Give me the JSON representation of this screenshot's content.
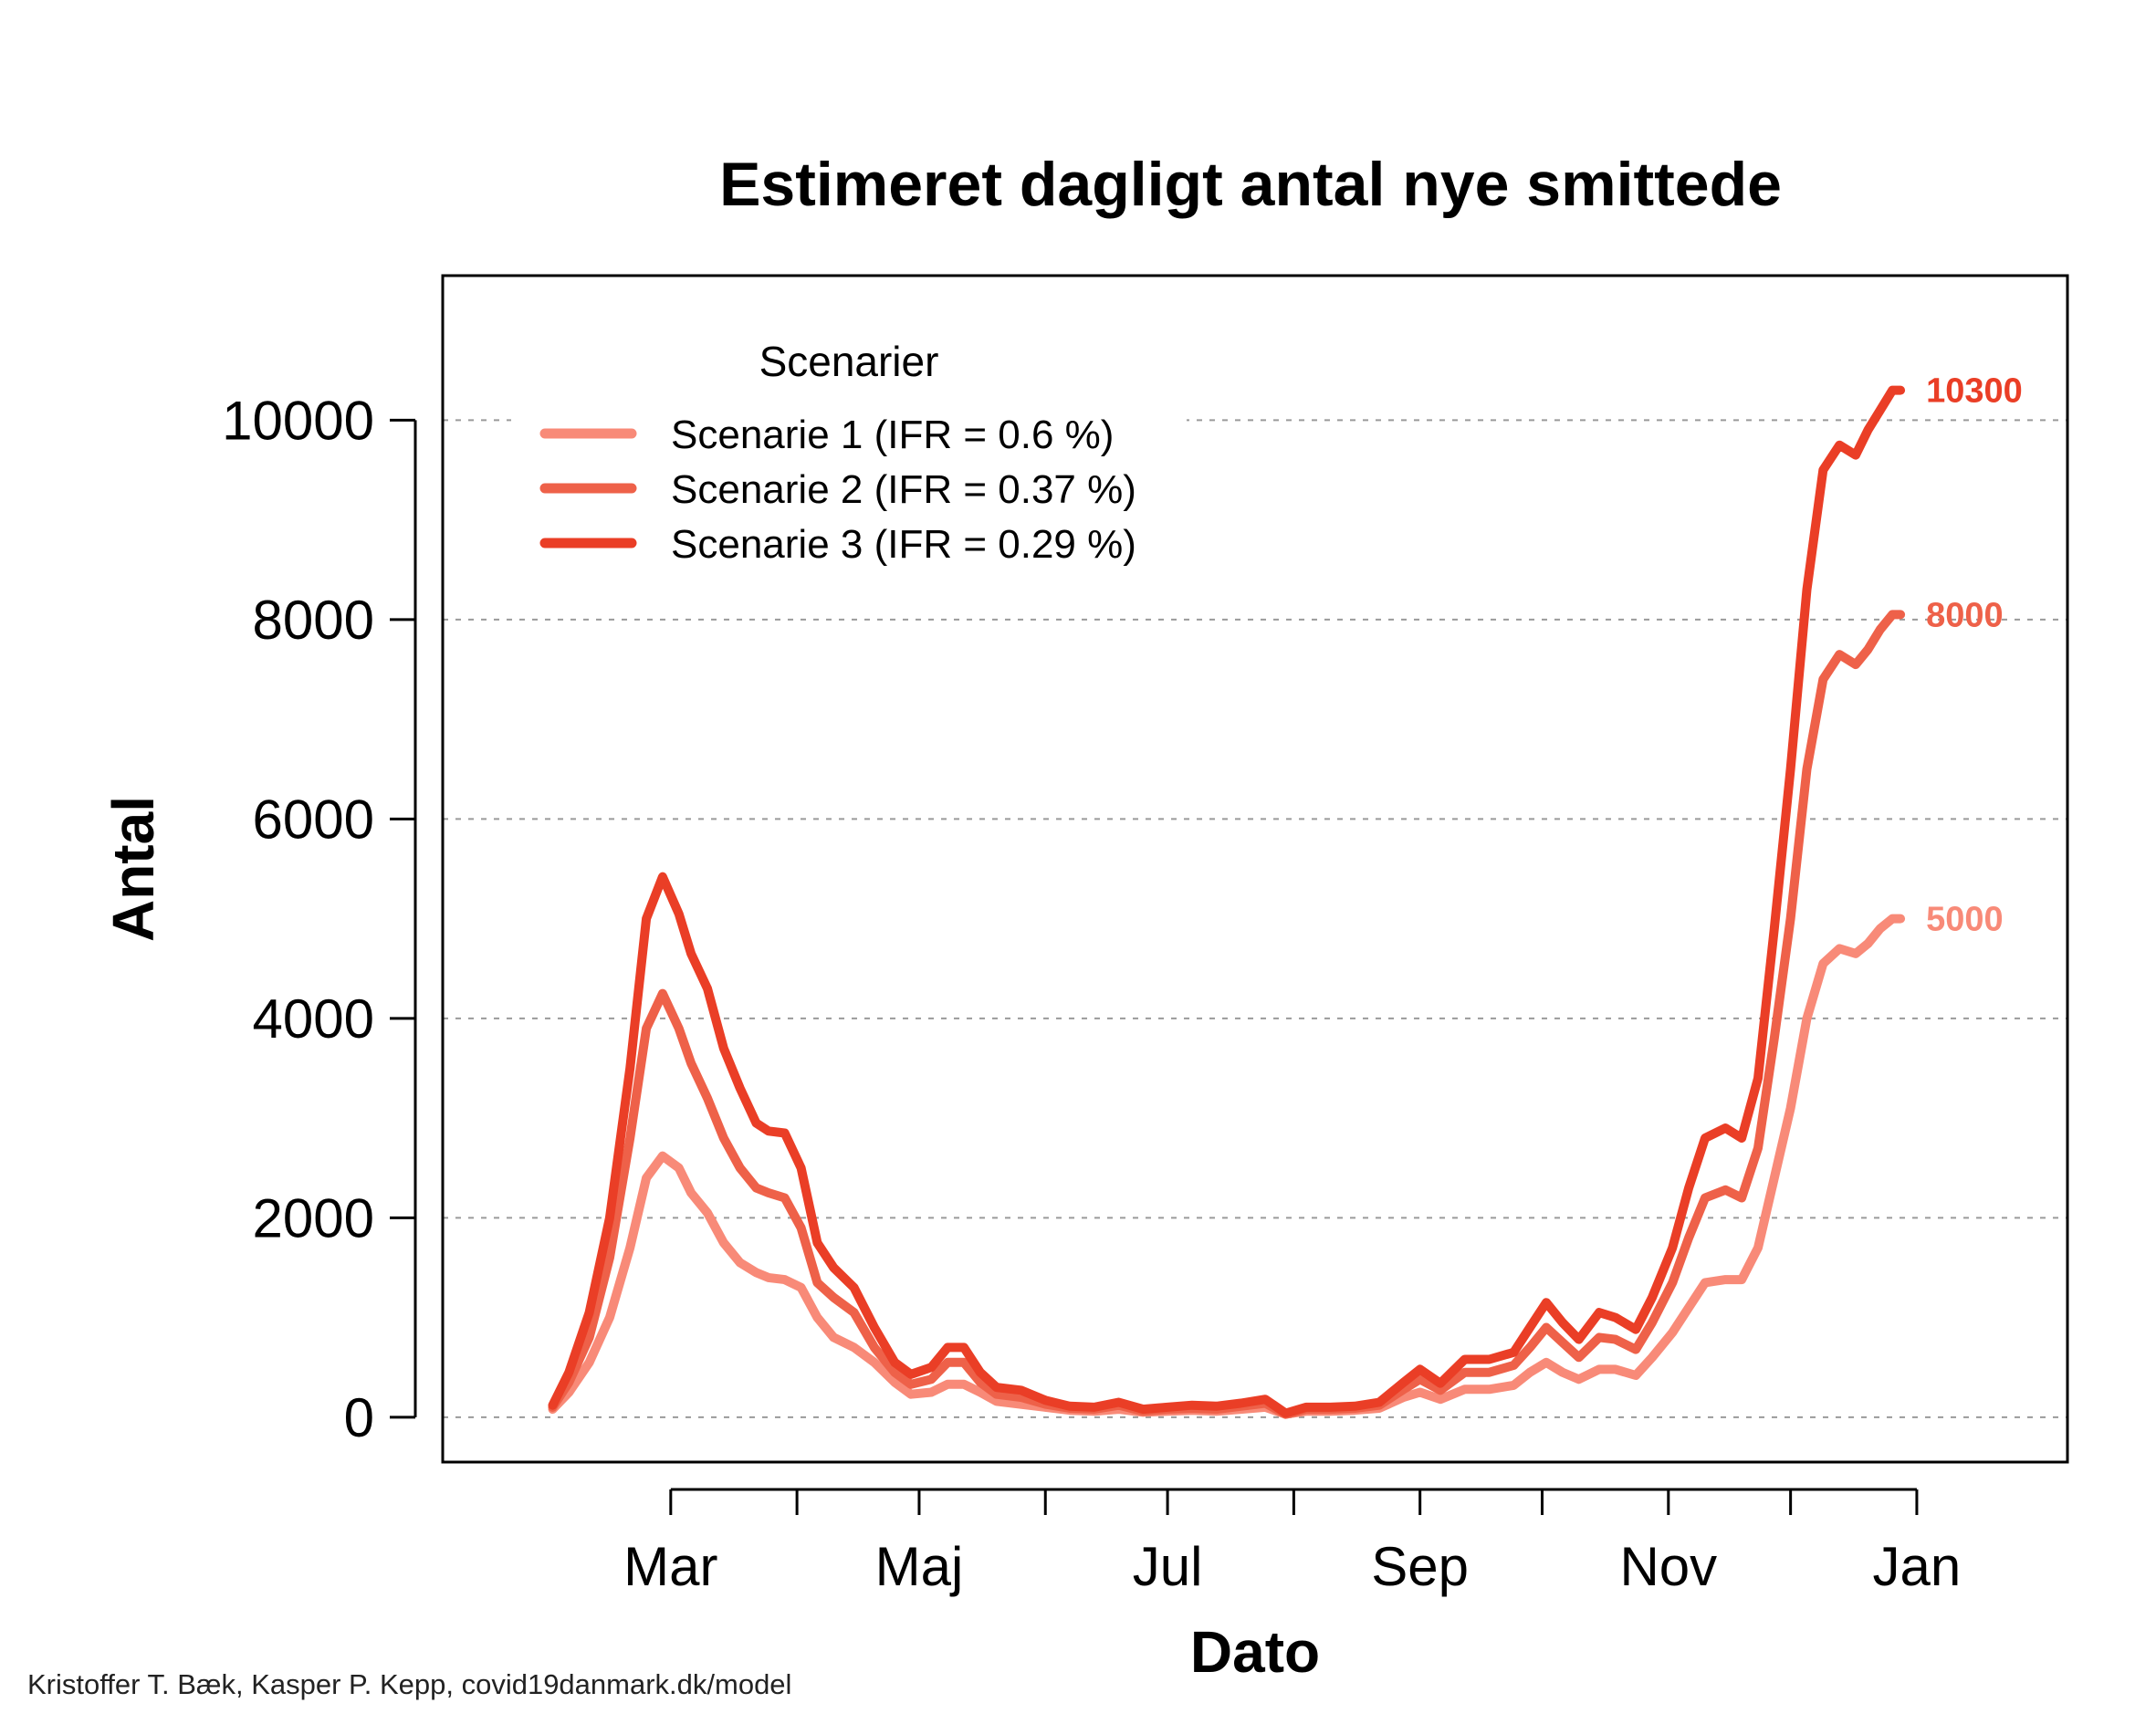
{
  "chart_data": {
    "type": "line",
    "title": "Estimeret dagligt antal nye smittede",
    "xlabel": "Dato",
    "ylabel": "Antal",
    "ylim": [
      -450,
      11450
    ],
    "yticks": [
      0,
      2000,
      4000,
      6000,
      8000,
      10000
    ],
    "ytick_labels": [
      "0",
      "2000",
      "4000",
      "6000",
      "8000",
      "10000"
    ],
    "xlim": [
      "2020-01-05",
      "2021-02-07"
    ],
    "xtick_labels": [
      {
        "date": "2020-03-01",
        "label": "Mar"
      },
      {
        "date": "2020-05-01",
        "label": "Maj"
      },
      {
        "date": "2020-07-01",
        "label": "Jul"
      },
      {
        "date": "2020-09-01",
        "label": "Sep"
      },
      {
        "date": "2020-11-01",
        "label": "Nov"
      },
      {
        "date": "2021-01-01",
        "label": "Jan"
      }
    ],
    "xminor_ticks": [
      "2020-04-01",
      "2020-06-01",
      "2020-08-01",
      "2020-10-01",
      "2020-12-01"
    ],
    "grid": "horizontal-dashed",
    "legend": {
      "title": "Scenarier",
      "position": "top-left"
    },
    "series": [
      {
        "name": "Scenarie 1 (IFR = 0.6 %)",
        "color": "#F88A78",
        "end_label": "5000",
        "points": [
          [
            "2020-02-01",
            80
          ],
          [
            "2020-02-05",
            250
          ],
          [
            "2020-02-10",
            550
          ],
          [
            "2020-02-15",
            1000
          ],
          [
            "2020-02-20",
            1700
          ],
          [
            "2020-02-24",
            2400
          ],
          [
            "2020-02-28",
            2620
          ],
          [
            "2020-03-03",
            2500
          ],
          [
            "2020-03-06",
            2250
          ],
          [
            "2020-03-10",
            2050
          ],
          [
            "2020-03-14",
            1750
          ],
          [
            "2020-03-18",
            1550
          ],
          [
            "2020-03-22",
            1450
          ],
          [
            "2020-03-25",
            1400
          ],
          [
            "2020-03-29",
            1380
          ],
          [
            "2020-04-02",
            1300
          ],
          [
            "2020-04-06",
            1000
          ],
          [
            "2020-04-10",
            800
          ],
          [
            "2020-04-15",
            700
          ],
          [
            "2020-04-20",
            550
          ],
          [
            "2020-04-25",
            350
          ],
          [
            "2020-04-29",
            230
          ],
          [
            "2020-05-04",
            250
          ],
          [
            "2020-05-08",
            330
          ],
          [
            "2020-05-12",
            330
          ],
          [
            "2020-05-16",
            250
          ],
          [
            "2020-05-20",
            160
          ],
          [
            "2020-05-26",
            130
          ],
          [
            "2020-06-01",
            100
          ],
          [
            "2020-06-07",
            70
          ],
          [
            "2020-06-13",
            60
          ],
          [
            "2020-06-19",
            80
          ],
          [
            "2020-06-25",
            50
          ],
          [
            "2020-07-01",
            60
          ],
          [
            "2020-07-07",
            70
          ],
          [
            "2020-07-13",
            60
          ],
          [
            "2020-07-19",
            80
          ],
          [
            "2020-07-25",
            100
          ],
          [
            "2020-07-30",
            30
          ],
          [
            "2020-08-04",
            60
          ],
          [
            "2020-08-10",
            60
          ],
          [
            "2020-08-16",
            70
          ],
          [
            "2020-08-22",
            90
          ],
          [
            "2020-08-28",
            200
          ],
          [
            "2020-09-01",
            250
          ],
          [
            "2020-09-06",
            180
          ],
          [
            "2020-09-12",
            280
          ],
          [
            "2020-09-18",
            280
          ],
          [
            "2020-09-24",
            320
          ],
          [
            "2020-09-28",
            450
          ],
          [
            "2020-10-02",
            550
          ],
          [
            "2020-10-06",
            450
          ],
          [
            "2020-10-10",
            380
          ],
          [
            "2020-10-15",
            480
          ],
          [
            "2020-10-19",
            480
          ],
          [
            "2020-10-24",
            420
          ],
          [
            "2020-10-28",
            600
          ],
          [
            "2020-11-02",
            850
          ],
          [
            "2020-11-06",
            1100
          ],
          [
            "2020-11-10",
            1350
          ],
          [
            "2020-11-15",
            1380
          ],
          [
            "2020-11-19",
            1380
          ],
          [
            "2020-11-23",
            1700
          ],
          [
            "2020-11-27",
            2400
          ],
          [
            "2020-12-01",
            3100
          ],
          [
            "2020-12-05",
            4000
          ],
          [
            "2020-12-09",
            4550
          ],
          [
            "2020-12-13",
            4700
          ],
          [
            "2020-12-17",
            4650
          ],
          [
            "2020-12-20",
            4750
          ],
          [
            "2020-12-23",
            4900
          ],
          [
            "2020-12-26",
            5000
          ],
          [
            "2020-12-28",
            5000
          ]
        ]
      },
      {
        "name": "Scenarie 2 (IFR = 0.37 %)",
        "color": "#EE6149",
        "end_label": "8000",
        "points": [
          [
            "2020-02-01",
            100
          ],
          [
            "2020-02-05",
            350
          ],
          [
            "2020-02-10",
            800
          ],
          [
            "2020-02-15",
            1600
          ],
          [
            "2020-02-20",
            2800
          ],
          [
            "2020-02-24",
            3900
          ],
          [
            "2020-02-28",
            4250
          ],
          [
            "2020-03-03",
            3900
          ],
          [
            "2020-03-06",
            3550
          ],
          [
            "2020-03-10",
            3200
          ],
          [
            "2020-03-14",
            2800
          ],
          [
            "2020-03-18",
            2500
          ],
          [
            "2020-03-22",
            2300
          ],
          [
            "2020-03-25",
            2250
          ],
          [
            "2020-03-29",
            2200
          ],
          [
            "2020-04-02",
            1900
          ],
          [
            "2020-04-06",
            1350
          ],
          [
            "2020-04-10",
            1200
          ],
          [
            "2020-04-15",
            1050
          ],
          [
            "2020-04-20",
            700
          ],
          [
            "2020-04-25",
            450
          ],
          [
            "2020-04-29",
            330
          ],
          [
            "2020-05-04",
            380
          ],
          [
            "2020-05-08",
            550
          ],
          [
            "2020-05-12",
            550
          ],
          [
            "2020-05-16",
            350
          ],
          [
            "2020-05-20",
            230
          ],
          [
            "2020-05-26",
            200
          ],
          [
            "2020-06-01",
            130
          ],
          [
            "2020-06-07",
            90
          ],
          [
            "2020-06-13",
            80
          ],
          [
            "2020-06-19",
            120
          ],
          [
            "2020-06-25",
            60
          ],
          [
            "2020-07-01",
            80
          ],
          [
            "2020-07-07",
            90
          ],
          [
            "2020-07-13",
            80
          ],
          [
            "2020-07-19",
            110
          ],
          [
            "2020-07-25",
            140
          ],
          [
            "2020-07-30",
            30
          ],
          [
            "2020-08-04",
            80
          ],
          [
            "2020-08-10",
            80
          ],
          [
            "2020-08-16",
            90
          ],
          [
            "2020-08-22",
            120
          ],
          [
            "2020-08-28",
            280
          ],
          [
            "2020-09-01",
            380
          ],
          [
            "2020-09-06",
            270
          ],
          [
            "2020-09-12",
            450
          ],
          [
            "2020-09-18",
            450
          ],
          [
            "2020-09-24",
            520
          ],
          [
            "2020-09-28",
            700
          ],
          [
            "2020-10-02",
            900
          ],
          [
            "2020-10-06",
            750
          ],
          [
            "2020-10-10",
            600
          ],
          [
            "2020-10-15",
            800
          ],
          [
            "2020-10-19",
            780
          ],
          [
            "2020-10-24",
            680
          ],
          [
            "2020-10-28",
            950
          ],
          [
            "2020-11-02",
            1350
          ],
          [
            "2020-11-06",
            1800
          ],
          [
            "2020-11-10",
            2200
          ],
          [
            "2020-11-15",
            2280
          ],
          [
            "2020-11-19",
            2200
          ],
          [
            "2020-11-23",
            2700
          ],
          [
            "2020-11-27",
            3800
          ],
          [
            "2020-12-01",
            5000
          ],
          [
            "2020-12-05",
            6500
          ],
          [
            "2020-12-09",
            7400
          ],
          [
            "2020-12-13",
            7650
          ],
          [
            "2020-12-17",
            7550
          ],
          [
            "2020-12-20",
            7700
          ],
          [
            "2020-12-23",
            7900
          ],
          [
            "2020-12-26",
            8050
          ],
          [
            "2020-12-28",
            8050
          ]
        ]
      },
      {
        "name": "Scenarie 3 (IFR = 0.29 %)",
        "color": "#EA3E26",
        "end_label": "10300",
        "points": [
          [
            "2020-02-01",
            120
          ],
          [
            "2020-02-05",
            450
          ],
          [
            "2020-02-10",
            1050
          ],
          [
            "2020-02-15",
            2000
          ],
          [
            "2020-02-20",
            3500
          ],
          [
            "2020-02-24",
            5000
          ],
          [
            "2020-02-28",
            5420
          ],
          [
            "2020-03-03",
            5050
          ],
          [
            "2020-03-06",
            4650
          ],
          [
            "2020-03-10",
            4300
          ],
          [
            "2020-03-14",
            3700
          ],
          [
            "2020-03-18",
            3300
          ],
          [
            "2020-03-22",
            2950
          ],
          [
            "2020-03-25",
            2870
          ],
          [
            "2020-03-29",
            2850
          ],
          [
            "2020-04-02",
            2500
          ],
          [
            "2020-04-06",
            1750
          ],
          [
            "2020-04-10",
            1500
          ],
          [
            "2020-04-15",
            1300
          ],
          [
            "2020-04-20",
            900
          ],
          [
            "2020-04-25",
            550
          ],
          [
            "2020-04-29",
            430
          ],
          [
            "2020-05-04",
            500
          ],
          [
            "2020-05-08",
            700
          ],
          [
            "2020-05-12",
            700
          ],
          [
            "2020-05-16",
            450
          ],
          [
            "2020-05-20",
            300
          ],
          [
            "2020-05-26",
            270
          ],
          [
            "2020-06-01",
            170
          ],
          [
            "2020-06-07",
            110
          ],
          [
            "2020-06-13",
            100
          ],
          [
            "2020-06-19",
            150
          ],
          [
            "2020-06-25",
            80
          ],
          [
            "2020-07-01",
            100
          ],
          [
            "2020-07-07",
            120
          ],
          [
            "2020-07-13",
            110
          ],
          [
            "2020-07-19",
            140
          ],
          [
            "2020-07-25",
            180
          ],
          [
            "2020-07-30",
            40
          ],
          [
            "2020-08-04",
            100
          ],
          [
            "2020-08-10",
            100
          ],
          [
            "2020-08-16",
            110
          ],
          [
            "2020-08-22",
            150
          ],
          [
            "2020-08-28",
            350
          ],
          [
            "2020-09-01",
            480
          ],
          [
            "2020-09-06",
            340
          ],
          [
            "2020-09-12",
            580
          ],
          [
            "2020-09-18",
            580
          ],
          [
            "2020-09-24",
            650
          ],
          [
            "2020-09-28",
            900
          ],
          [
            "2020-10-02",
            1150
          ],
          [
            "2020-10-06",
            950
          ],
          [
            "2020-10-10",
            780
          ],
          [
            "2020-10-15",
            1050
          ],
          [
            "2020-10-19",
            1000
          ],
          [
            "2020-10-24",
            880
          ],
          [
            "2020-10-28",
            1200
          ],
          [
            "2020-11-02",
            1700
          ],
          [
            "2020-11-06",
            2300
          ],
          [
            "2020-11-10",
            2800
          ],
          [
            "2020-11-15",
            2900
          ],
          [
            "2020-11-19",
            2800
          ],
          [
            "2020-11-23",
            3400
          ],
          [
            "2020-11-27",
            4900
          ],
          [
            "2020-12-01",
            6500
          ],
          [
            "2020-12-05",
            8300
          ],
          [
            "2020-12-09",
            9500
          ],
          [
            "2020-12-13",
            9750
          ],
          [
            "2020-12-17",
            9650
          ],
          [
            "2020-12-20",
            9900
          ],
          [
            "2020-12-23",
            10100
          ],
          [
            "2020-12-26",
            10300
          ],
          [
            "2020-12-28",
            10300
          ]
        ]
      }
    ]
  },
  "credit": "Kristoffer T. Bæk, Kasper P. Kepp, covid19danmark.dk/model"
}
